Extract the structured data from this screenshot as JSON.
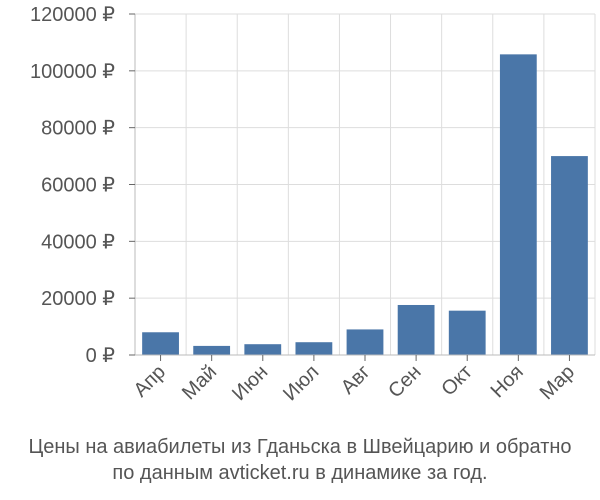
{
  "chart_data": {
    "type": "bar",
    "categories": [
      "Апр",
      "Май",
      "Июн",
      "Июл",
      "Авг",
      "Сен",
      "Окт",
      "Ноя",
      "Мар"
    ],
    "values": [
      8000,
      3200,
      3800,
      4500,
      9000,
      17600,
      15600,
      105800,
      70000
    ],
    "ylim": [
      0,
      120000
    ],
    "yticks": [
      0,
      20000,
      40000,
      60000,
      80000,
      100000,
      120000
    ],
    "ytick_labels": [
      "0 ₽",
      "20000 ₽",
      "40000 ₽",
      "60000 ₽",
      "80000 ₽",
      "100000 ₽",
      "120000 ₽"
    ],
    "grid": true,
    "bar_color": "#4a76a8"
  },
  "caption": {
    "line1": "Цены на авиабилеты из Гданьска в Швейцарию и обратно",
    "line2": "по данным avticket.ru в динамике за год."
  }
}
